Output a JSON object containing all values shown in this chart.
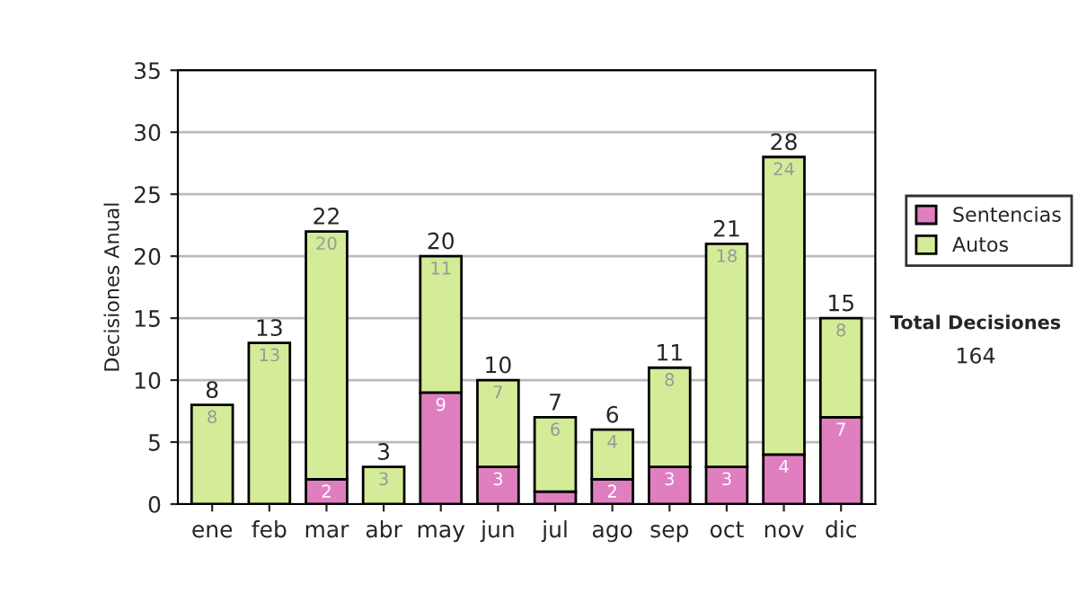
{
  "chart_data": {
    "type": "bar",
    "stacked": true,
    "ylabel": "Decisiones Anual",
    "categories": [
      "ene",
      "feb",
      "mar",
      "abr",
      "may",
      "jun",
      "jul",
      "ago",
      "sep",
      "oct",
      "nov",
      "dic"
    ],
    "series": [
      {
        "name": "Sentencias",
        "color": "#e07fc0",
        "values": [
          0,
          0,
          2,
          0,
          9,
          3,
          1,
          2,
          3,
          3,
          4,
          7
        ],
        "value_labels": [
          null,
          null,
          "2",
          null,
          "9",
          "3",
          null,
          "2",
          "3",
          "3",
          "4",
          "7"
        ]
      },
      {
        "name": "Autos",
        "color": "#d4ec98",
        "values": [
          8,
          13,
          20,
          3,
          11,
          7,
          6,
          4,
          8,
          18,
          24,
          8
        ],
        "value_labels": [
          "8",
          "13",
          "20",
          "3",
          "11",
          "7",
          "6",
          "4",
          "8",
          "18",
          "24",
          "8"
        ]
      }
    ],
    "totals": [
      "8",
      "13",
      "22",
      "3",
      "20",
      "10",
      "7",
      "6",
      "11",
      "21",
      "28",
      "15"
    ],
    "ylim": [
      0,
      35
    ],
    "yticks": [
      0,
      5,
      10,
      15,
      20,
      25,
      30,
      35
    ],
    "grid": "y",
    "legend": "right",
    "annotations": [
      "Total Decisiones",
      "164"
    ]
  }
}
